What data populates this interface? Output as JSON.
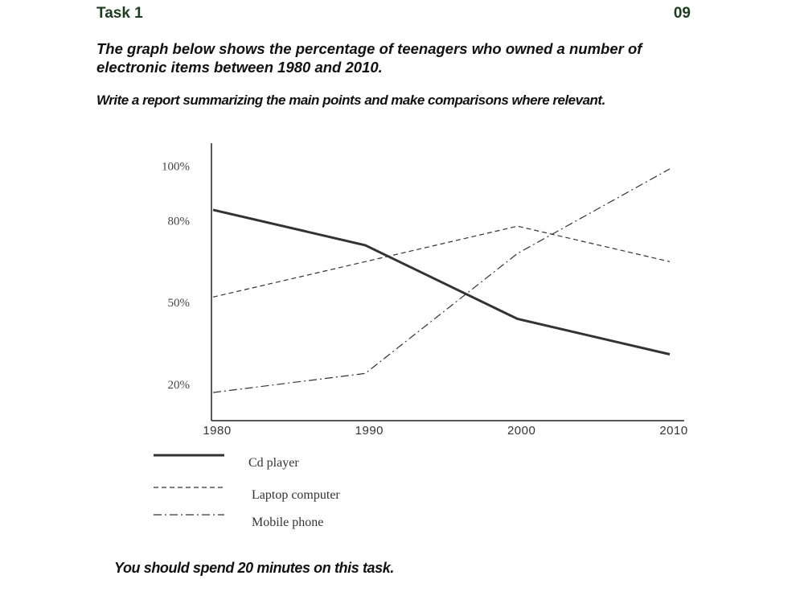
{
  "header": {
    "task_title": "Task 1",
    "task_number": "09"
  },
  "prompt": {
    "description": "The graph below shows the percentage of teenagers who owned a number of electronic items between 1980 and 2010.",
    "instruction": "Write a report summarizing the main points and make comparisons where relevant."
  },
  "footer": {
    "note": "You should spend 20 minutes on this task."
  },
  "colors": {
    "header_text": "#1e3d1e",
    "body_text": "#111111",
    "lines": "#333333"
  },
  "chart_data": {
    "type": "line",
    "x": [
      1980,
      1990,
      2000,
      2010
    ],
    "y_ticks": [
      {
        "value": 20,
        "label": "20%"
      },
      {
        "value": 50,
        "label": "50%"
      },
      {
        "value": 80,
        "label": "80%"
      },
      {
        "value": 100,
        "label": "100%"
      }
    ],
    "x_ticks": [
      "1980",
      "1990",
      "2000",
      "2010"
    ],
    "ylim": [
      13,
      110
    ],
    "grid": false,
    "legend_position": "bottom",
    "series": [
      {
        "name": "Cd player",
        "style": "solid",
        "values": [
          84,
          71,
          44,
          31
        ]
      },
      {
        "name": "Laptop computer",
        "style": "dashed",
        "values": [
          52,
          65,
          78,
          65
        ]
      },
      {
        "name": "Mobile phone",
        "style": "dash-dot",
        "values": [
          17,
          24,
          68,
          99
        ]
      }
    ]
  }
}
